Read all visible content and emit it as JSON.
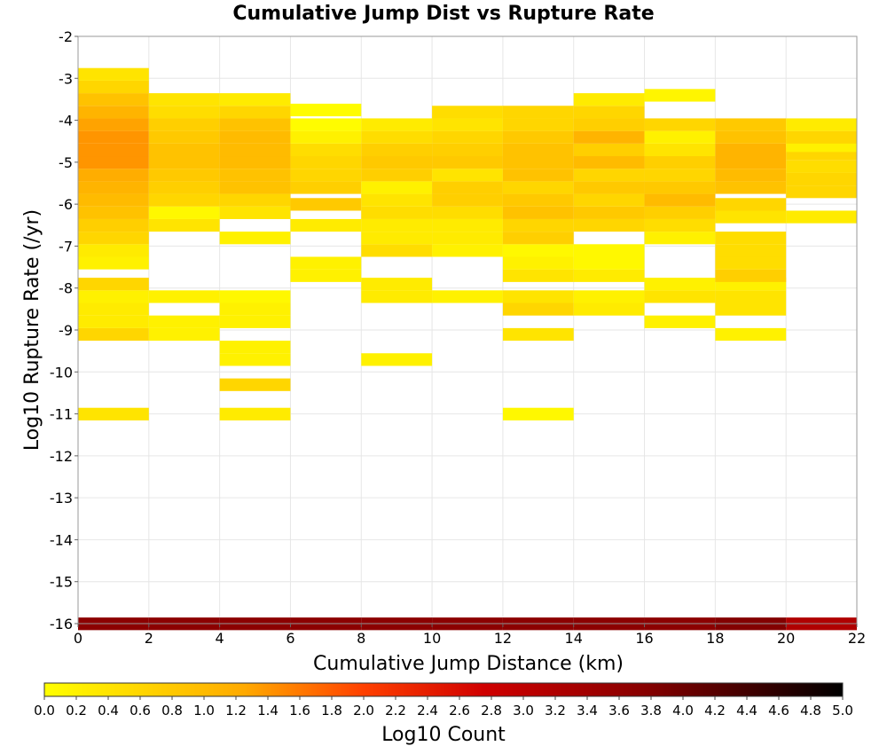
{
  "chart_data": {
    "type": "heatmap",
    "title": "Cumulative Jump Dist vs Rupture Rate",
    "xlabel": "Cumulative Jump Distance (km)",
    "ylabel": "Log10 Rupture Rate (/yr)",
    "xlim": [
      0,
      22
    ],
    "ylim": [
      -16,
      -2
    ],
    "x_ticks": [
      "0",
      "2",
      "4",
      "6",
      "8",
      "10",
      "12",
      "14",
      "16",
      "18",
      "20",
      "22"
    ],
    "y_ticks": [
      "-2",
      "-3",
      "-4",
      "-5",
      "-6",
      "-7",
      "-8",
      "-9",
      "-10",
      "-11",
      "-12",
      "-13",
      "-14",
      "-15",
      "-16"
    ],
    "colorbar": {
      "label": "Log10 Count",
      "range": [
        0,
        5
      ],
      "ticks": [
        "0.0",
        "0.2",
        "0.4",
        "0.6",
        "0.8",
        "1.0",
        "1.2",
        "1.4",
        "1.6",
        "1.8",
        "2.0",
        "2.2",
        "2.4",
        "2.6",
        "2.8",
        "3.0",
        "3.2",
        "3.4",
        "3.6",
        "3.8",
        "4.0",
        "4.2",
        "4.4",
        "4.6",
        "4.8",
        "5.0"
      ],
      "colormap": "yellow-orange-red-black"
    },
    "grid": true,
    "x_bin_width": 2,
    "y_bin_height": 0.29,
    "columns": [
      {
        "x": 1,
        "cells": [
          [
            -16,
            3.7
          ],
          [
            -11,
            0.4
          ],
          [
            -9.1,
            0.6
          ],
          [
            -8.8,
            0.3
          ],
          [
            -8.5,
            0.3
          ],
          [
            -8.2,
            0.2
          ],
          [
            -7.9,
            0.6
          ],
          [
            -7.4,
            0.2
          ],
          [
            -7.1,
            0.3
          ],
          [
            -6.8,
            0.6
          ],
          [
            -6.5,
            0.7
          ],
          [
            -6.2,
            0.9
          ],
          [
            -5.9,
            1.0
          ],
          [
            -5.6,
            1.1
          ],
          [
            -5.3,
            1.2
          ],
          [
            -5,
            1.4
          ],
          [
            -4.7,
            1.4
          ],
          [
            -4.4,
            1.4
          ],
          [
            -4.1,
            1.3
          ],
          [
            -3.8,
            1.1
          ],
          [
            -3.5,
            0.9
          ],
          [
            -3.2,
            0.6
          ],
          [
            -2.9,
            0.4
          ]
        ]
      },
      {
        "x": 3,
        "cells": [
          [
            -16,
            3.7
          ],
          [
            -9.1,
            0.2
          ],
          [
            -8.8,
            0.2
          ],
          [
            -8.2,
            0.2
          ],
          [
            -6.5,
            0.4
          ],
          [
            -6.2,
            0.1
          ],
          [
            -5.9,
            0.6
          ],
          [
            -5.6,
            0.7
          ],
          [
            -5.3,
            0.8
          ],
          [
            -5,
            0.9
          ],
          [
            -4.7,
            0.9
          ],
          [
            -4.4,
            0.8
          ],
          [
            -4.1,
            0.7
          ],
          [
            -3.8,
            0.5
          ],
          [
            -3.5,
            0.4
          ]
        ]
      },
      {
        "x": 5,
        "cells": [
          [
            -16,
            3.7
          ],
          [
            -11,
            0.3
          ],
          [
            -10.3,
            0.6
          ],
          [
            -9.7,
            0.2
          ],
          [
            -9.4,
            0.2
          ],
          [
            -8.8,
            0.2
          ],
          [
            -8.5,
            0.2
          ],
          [
            -8.2,
            0.1
          ],
          [
            -6.8,
            0.2
          ],
          [
            -6.2,
            0.4
          ],
          [
            -5.9,
            0.6
          ],
          [
            -5.6,
            0.9
          ],
          [
            -5.3,
            0.9
          ],
          [
            -5,
            1.0
          ],
          [
            -4.7,
            1.0
          ],
          [
            -4.4,
            1.0
          ],
          [
            -4.1,
            0.9
          ],
          [
            -3.8,
            0.6
          ],
          [
            -3.5,
            0.3
          ]
        ]
      },
      {
        "x": 7,
        "cells": [
          [
            -16,
            3.7
          ],
          [
            -7.7,
            0.2
          ],
          [
            -7.4,
            0.2
          ],
          [
            -6.5,
            0.3
          ],
          [
            -6,
            0.8
          ],
          [
            -5.6,
            0.7
          ],
          [
            -5.3,
            0.6
          ],
          [
            -5,
            0.6
          ],
          [
            -4.7,
            0.5
          ],
          [
            -4.4,
            0.2
          ],
          [
            -4.1,
            0.05
          ],
          [
            -3.75,
            0.05
          ]
        ]
      },
      {
        "x": 9,
        "cells": [
          [
            -16,
            3.7
          ],
          [
            -9.7,
            0.2
          ],
          [
            -8.2,
            0.3
          ],
          [
            -7.9,
            0.3
          ],
          [
            -7.1,
            0.5
          ],
          [
            -6.8,
            0.3
          ],
          [
            -6.5,
            0.3
          ],
          [
            -6.2,
            0.5
          ],
          [
            -5.9,
            0.4
          ],
          [
            -5.6,
            0.2
          ],
          [
            -5.3,
            0.7
          ],
          [
            -5,
            0.8
          ],
          [
            -4.7,
            0.7
          ],
          [
            -4.4,
            0.5
          ],
          [
            -4.1,
            0.3
          ]
        ]
      },
      {
        "x": 11,
        "cells": [
          [
            -16,
            3.7
          ],
          [
            -8.2,
            0.2
          ],
          [
            -7.1,
            0.2
          ],
          [
            -6.8,
            0.3
          ],
          [
            -6.5,
            0.3
          ],
          [
            -6.2,
            0.5
          ],
          [
            -5.9,
            0.7
          ],
          [
            -5.6,
            0.7
          ],
          [
            -5.3,
            0.4
          ],
          [
            -5,
            0.8
          ],
          [
            -4.7,
            0.7
          ],
          [
            -4.4,
            0.6
          ],
          [
            -4.1,
            0.4
          ],
          [
            -3.8,
            0.5
          ]
        ]
      },
      {
        "x": 13,
        "cells": [
          [
            -16,
            3.7
          ],
          [
            -11,
            0.1
          ],
          [
            -9.1,
            0.4
          ],
          [
            -8.5,
            0.6
          ],
          [
            -8.2,
            0.4
          ],
          [
            -7.7,
            0.4
          ],
          [
            -7.4,
            0.2
          ],
          [
            -7.1,
            0.1
          ],
          [
            -6.8,
            0.7
          ],
          [
            -6.5,
            0.6
          ],
          [
            -6.2,
            0.9
          ],
          [
            -5.9,
            0.8
          ],
          [
            -5.6,
            0.6
          ],
          [
            -5.3,
            0.9
          ],
          [
            -5,
            0.9
          ],
          [
            -4.7,
            0.9
          ],
          [
            -4.4,
            0.8
          ],
          [
            -4.1,
            0.6
          ],
          [
            -3.8,
            0.6
          ]
        ]
      },
      {
        "x": 15,
        "cells": [
          [
            -16,
            3.7
          ],
          [
            -8.5,
            0.3
          ],
          [
            -8.2,
            0.2
          ],
          [
            -7.7,
            0.3
          ],
          [
            -7.4,
            0.1
          ],
          [
            -7.1,
            0.1
          ],
          [
            -6.5,
            0.6
          ],
          [
            -6.2,
            0.8
          ],
          [
            -5.9,
            0.6
          ],
          [
            -5.6,
            0.8
          ],
          [
            -5.3,
            0.6
          ],
          [
            -5,
            1.0
          ],
          [
            -4.7,
            0.7
          ],
          [
            -4.4,
            1.1
          ],
          [
            -4.1,
            0.7
          ],
          [
            -3.8,
            0.6
          ],
          [
            -3.5,
            0.3
          ]
        ]
      },
      {
        "x": 17,
        "cells": [
          [
            -16,
            3.7
          ],
          [
            -8.8,
            0.2
          ],
          [
            -8.2,
            0.4
          ],
          [
            -7.9,
            0.2
          ],
          [
            -6.8,
            0.2
          ],
          [
            -6.5,
            0.5
          ],
          [
            -6.2,
            0.7
          ],
          [
            -5.9,
            1.0
          ],
          [
            -5.6,
            0.8
          ],
          [
            -5.3,
            0.6
          ],
          [
            -5,
            0.7
          ],
          [
            -4.7,
            0.4
          ],
          [
            -4.4,
            0.2
          ],
          [
            -4.1,
            0.6
          ],
          [
            -3.4,
            0.15
          ]
        ]
      },
      {
        "x": 19,
        "cells": [
          [
            -16,
            3.8
          ],
          [
            -9.1,
            0.2
          ],
          [
            -8.5,
            0.4
          ],
          [
            -8.2,
            0.4
          ],
          [
            -7.9,
            0.2
          ],
          [
            -7.7,
            0.7
          ],
          [
            -7.4,
            0.5
          ],
          [
            -7.1,
            0.5
          ],
          [
            -6.8,
            0.5
          ],
          [
            -6.3,
            0.4
          ],
          [
            -6,
            0.6
          ],
          [
            -5.6,
            0.9
          ],
          [
            -5.3,
            1.0
          ],
          [
            -5,
            1.1
          ],
          [
            -4.7,
            1.1
          ],
          [
            -4.4,
            0.9
          ],
          [
            -4.1,
            0.8
          ]
        ]
      },
      {
        "x": 21,
        "cells": [
          [
            -16,
            3.2
          ],
          [
            -6.3,
            0.3
          ],
          [
            -5.7,
            0.6
          ],
          [
            -5.4,
            0.6
          ],
          [
            -5.1,
            0.5
          ],
          [
            -4.8,
            0.6
          ],
          [
            -4.6,
            0.2
          ],
          [
            -4.4,
            0.6
          ],
          [
            -4.1,
            0.3
          ]
        ]
      }
    ]
  }
}
